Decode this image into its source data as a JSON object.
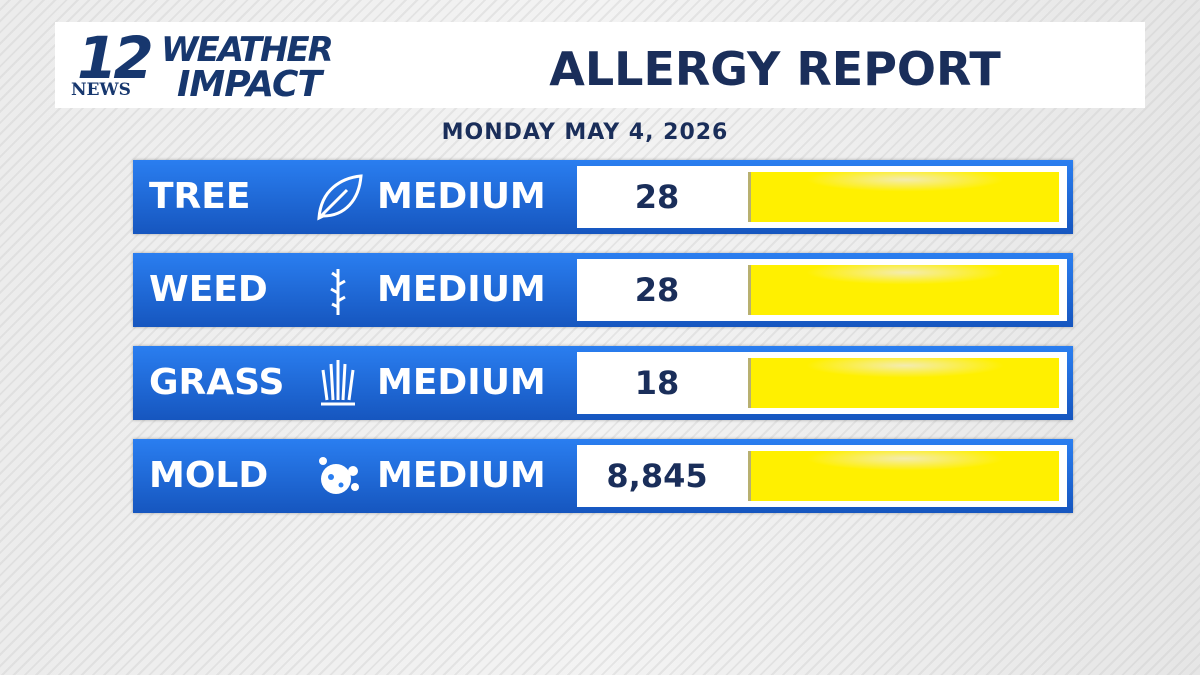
{
  "header": {
    "logo": {
      "number": "12",
      "station": "NEWS",
      "line1": "WEATHER",
      "line2": "IMPACT"
    },
    "title": "ALLERGY REPORT"
  },
  "date": "MONDAY MAY 4, 2026",
  "rows": [
    {
      "name": "TREE",
      "level": "MEDIUM",
      "count": "28"
    },
    {
      "name": "WEED",
      "level": "MEDIUM",
      "count": "28"
    },
    {
      "name": "GRASS",
      "level": "MEDIUM",
      "count": "18"
    },
    {
      "name": "MOLD",
      "level": "MEDIUM",
      "count": "8,845"
    }
  ]
}
